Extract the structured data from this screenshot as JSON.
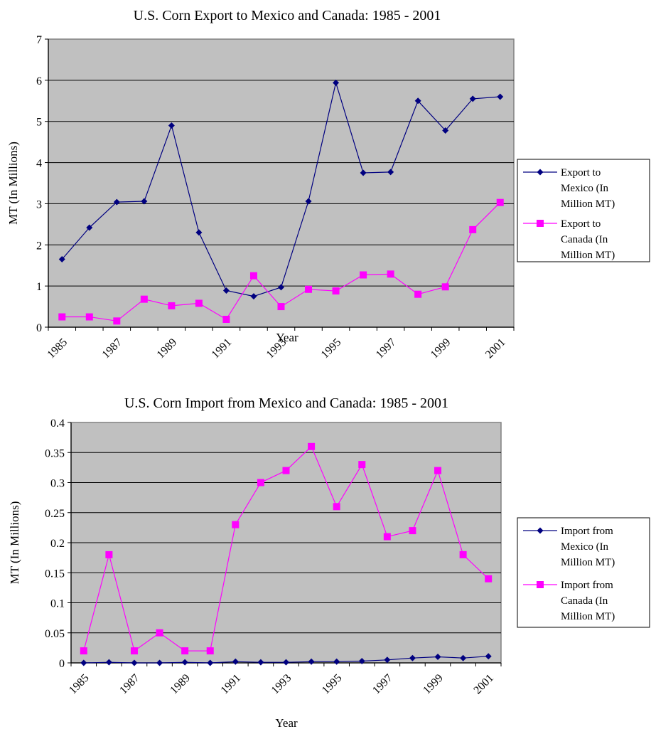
{
  "chart_data": [
    {
      "type": "line",
      "title": "U.S. Corn Export to Mexico and Canada: 1985 - 2001",
      "xlabel": "Year",
      "ylabel": "MT (In Millions)",
      "x": [
        1985,
        1986,
        1987,
        1988,
        1989,
        1990,
        1991,
        1992,
        1993,
        1994,
        1995,
        1996,
        1997,
        1998,
        1999,
        2000,
        2001
      ],
      "x_tick_labels": [
        "1985",
        "1987",
        "1989",
        "1991",
        "1993",
        "1995",
        "1997",
        "1999",
        "2001"
      ],
      "y_tick_labels": [
        "0",
        "1",
        "2",
        "3",
        "4",
        "5",
        "6",
        "7"
      ],
      "ylim": [
        0,
        7
      ],
      "grid": true,
      "legend_position": "right",
      "series": [
        {
          "name": "Export to Mexico (In Million MT)",
          "legend_lines": [
            "Export to",
            "Mexico (In",
            "Million MT)"
          ],
          "color": "#000080",
          "marker": "diamond",
          "values": [
            1.65,
            2.42,
            3.04,
            3.06,
            4.9,
            2.3,
            0.89,
            0.75,
            0.97,
            3.06,
            5.94,
            3.75,
            3.77,
            5.5,
            4.78,
            5.55,
            5.6
          ]
        },
        {
          "name": "Export to Canada (In Million MT)",
          "legend_lines": [
            "Export to",
            "Canada (In",
            "Million MT)"
          ],
          "color": "#ff00ff",
          "marker": "square",
          "values": [
            0.25,
            0.25,
            0.15,
            0.68,
            0.52,
            0.58,
            0.19,
            1.25,
            0.5,
            0.92,
            0.88,
            1.27,
            1.29,
            0.8,
            0.98,
            2.37,
            3.03
          ]
        }
      ]
    },
    {
      "type": "line",
      "title": "U.S. Corn Import from Mexico and Canada: 1985 - 2001",
      "xlabel": "Year",
      "ylabel": "MT (In Millions)",
      "x": [
        1985,
        1986,
        1987,
        1988,
        1989,
        1990,
        1991,
        1992,
        1993,
        1994,
        1995,
        1996,
        1997,
        1998,
        1999,
        2000,
        2001
      ],
      "x_tick_labels": [
        "1985",
        "1987",
        "1989",
        "1991",
        "1993",
        "1995",
        "1997",
        "1999",
        "2001"
      ],
      "y_tick_labels": [
        "0",
        "0.05",
        "0.1",
        "0.15",
        "0.2",
        "0.25",
        "0.3",
        "0.35",
        "0.4"
      ],
      "ylim": [
        0,
        0.4
      ],
      "grid": true,
      "legend_position": "right",
      "series": [
        {
          "name": "Import from Mexico (In Million MT)",
          "legend_lines": [
            "Import from",
            "Mexico (In",
            "Million MT)"
          ],
          "color": "#000080",
          "marker": "diamond",
          "values": [
            0.0,
            0.001,
            0.0,
            0.0,
            0.001,
            0.0,
            0.002,
            0.001,
            0.001,
            0.002,
            0.002,
            0.003,
            0.005,
            0.008,
            0.01,
            0.008,
            0.011
          ]
        },
        {
          "name": "Import from Canada (In Million MT)",
          "legend_lines": [
            "Import from",
            "Canada (In",
            "Million MT)"
          ],
          "color": "#ff00ff",
          "marker": "square",
          "values": [
            0.02,
            0.18,
            0.02,
            0.05,
            0.02,
            0.02,
            0.23,
            0.3,
            0.32,
            0.36,
            0.26,
            0.33,
            0.21,
            0.22,
            0.32,
            0.18,
            0.14
          ]
        }
      ]
    }
  ]
}
